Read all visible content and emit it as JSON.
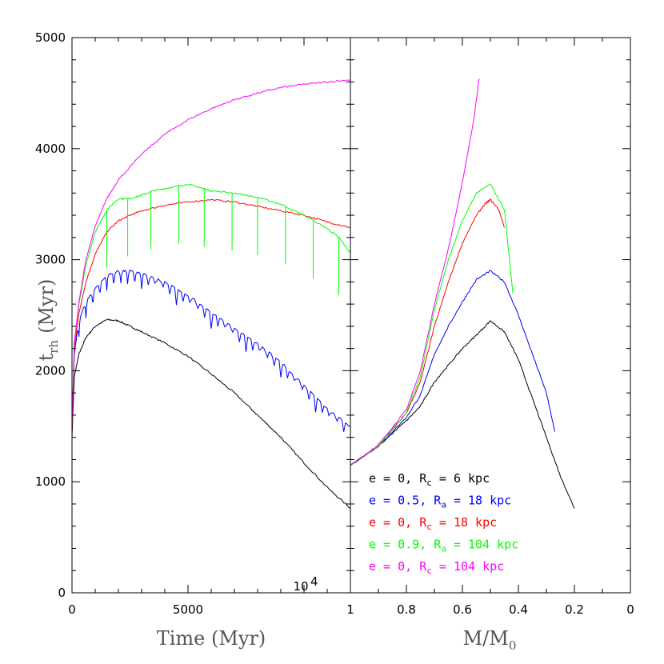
{
  "chart_data": [
    {
      "panel": "left",
      "type": "line",
      "xlabel": "Time (Myr)",
      "ylabel_main": "t",
      "ylabel_sub": "rh",
      "ylabel_unit": "(Myr)",
      "xlim": [
        0,
        12000
      ],
      "ylim": [
        0,
        5000
      ],
      "xticks": [
        {
          "value": 0,
          "label": "0"
        },
        {
          "value": 5000,
          "label": "5000"
        },
        {
          "value": 10000,
          "label": "10",
          "exp": "4"
        }
      ],
      "yticks": [
        {
          "value": 0,
          "label": "0"
        },
        {
          "value": 1000,
          "label": "1000"
        },
        {
          "value": 2000,
          "label": "2000"
        },
        {
          "value": 3000,
          "label": "3000"
        },
        {
          "value": 4000,
          "label": "4000"
        },
        {
          "value": 5000,
          "label": "5000"
        }
      ],
      "series": [
        {
          "name": "e = 0, Rc = 6 kpc",
          "color": "#000000",
          "x": [
            0,
            100,
            300,
            600,
            1000,
            1500,
            2000,
            2500,
            3000,
            4000,
            5000,
            6000,
            7000,
            8000,
            9000,
            10000,
            11000,
            12000
          ],
          "y": [
            1400,
            1950,
            2150,
            2300,
            2400,
            2460,
            2450,
            2400,
            2350,
            2250,
            2130,
            1970,
            1800,
            1600,
            1400,
            1170,
            950,
            760
          ],
          "osc": 0
        },
        {
          "name": "e = 0.5, Ra = 18 kpc",
          "color": "#0000ff",
          "x": [
            0,
            100,
            300,
            600,
            1000,
            1500,
            2000,
            2500,
            3000,
            4000,
            5000,
            6000,
            7000,
            8000,
            9000,
            10000,
            11000,
            12000
          ],
          "y": [
            1450,
            2150,
            2450,
            2620,
            2740,
            2860,
            2900,
            2900,
            2880,
            2800,
            2680,
            2530,
            2380,
            2250,
            2080,
            1870,
            1660,
            1500
          ],
          "osc": 120
        },
        {
          "name": "e = 0, Rc = 18 kpc",
          "color": "#ff0000",
          "x": [
            0,
            100,
            300,
            600,
            1000,
            1500,
            2000,
            2500,
            3000,
            4000,
            5000,
            6000,
            7000,
            8000,
            9000,
            10000,
            11000,
            12000
          ],
          "y": [
            1450,
            2200,
            2520,
            2800,
            3050,
            3250,
            3350,
            3400,
            3440,
            3490,
            3520,
            3540,
            3520,
            3480,
            3440,
            3400,
            3340,
            3290
          ],
          "osc": 0
        },
        {
          "name": "e = 0.9, Ra = 104 kpc",
          "color": "#00ff00",
          "x": [
            0,
            100,
            300,
            600,
            1000,
            1500,
            2000,
            2500,
            3000,
            3500,
            4000,
            4500,
            5000,
            5500,
            6000,
            7000,
            8000,
            9000,
            10000,
            11000,
            11500,
            12000
          ],
          "y": [
            1500,
            2250,
            2600,
            2950,
            3250,
            3450,
            3550,
            3550,
            3580,
            3620,
            3640,
            3660,
            3680,
            3650,
            3620,
            3600,
            3560,
            3500,
            3400,
            3280,
            3200,
            3060
          ],
          "osc": 0
        },
        {
          "name": "e = 0, Rc = 104 kpc",
          "color": "#ff00ff",
          "x": [
            0,
            100,
            300,
            600,
            1000,
            1500,
            2000,
            3000,
            4000,
            5000,
            6000,
            7000,
            8000,
            9000,
            10000,
            11000,
            12000
          ],
          "y": [
            1500,
            2250,
            2620,
            3000,
            3300,
            3550,
            3720,
            3950,
            4130,
            4260,
            4360,
            4440,
            4500,
            4550,
            4580,
            4600,
            4620
          ],
          "osc": 0
        }
      ]
    },
    {
      "panel": "right",
      "type": "line",
      "xlabel": "M/M",
      "xlabel_sub": "0",
      "xlim": [
        1,
        0
      ],
      "ylim": [
        0,
        5000
      ],
      "xticks": [
        {
          "value": 1,
          "label": "1"
        },
        {
          "value": 0.8,
          "label": "0.8"
        },
        {
          "value": 0.6,
          "label": "0.6"
        },
        {
          "value": 0.4,
          "label": "0.4"
        },
        {
          "value": 0.2,
          "label": "0.2"
        },
        {
          "value": 0,
          "label": "0"
        }
      ],
      "series": [
        {
          "name": "e = 0, Rc = 6 kpc",
          "color": "#000000",
          "x": [
            1,
            0.9,
            0.8,
            0.75,
            0.7,
            0.65,
            0.6,
            0.55,
            0.5,
            0.45,
            0.4,
            0.35,
            0.3,
            0.25,
            0.2
          ],
          "y": [
            1150,
            1320,
            1550,
            1680,
            1900,
            2050,
            2200,
            2320,
            2450,
            2350,
            2100,
            1750,
            1400,
            1050,
            760
          ]
        },
        {
          "name": "e = 0.5, Ra = 18 kpc",
          "color": "#0000ff",
          "x": [
            1,
            0.9,
            0.8,
            0.75,
            0.7,
            0.65,
            0.6,
            0.55,
            0.5,
            0.45,
            0.4,
            0.35,
            0.3,
            0.27
          ],
          "y": [
            1150,
            1320,
            1580,
            1780,
            2150,
            2400,
            2620,
            2820,
            2900,
            2800,
            2500,
            2150,
            1800,
            1450
          ]
        },
        {
          "name": "e = 0, Rc = 18 kpc",
          "color": "#ff0000",
          "x": [
            1,
            0.9,
            0.8,
            0.75,
            0.7,
            0.65,
            0.6,
            0.55,
            0.52,
            0.5,
            0.47,
            0.45
          ],
          "y": [
            1150,
            1320,
            1620,
            1900,
            2400,
            2800,
            3150,
            3400,
            3500,
            3540,
            3450,
            3290
          ]
        },
        {
          "name": "e = 0.9, Ra = 104 kpc",
          "color": "#00ff00",
          "x": [
            1,
            0.9,
            0.8,
            0.75,
            0.7,
            0.65,
            0.6,
            0.55,
            0.5,
            0.45,
            0.42
          ],
          "y": [
            1150,
            1320,
            1620,
            1950,
            2550,
            3000,
            3350,
            3600,
            3680,
            3450,
            2700
          ]
        },
        {
          "name": "e = 0, Rc = 104 kpc",
          "color": "#ff00ff",
          "x": [
            1,
            0.9,
            0.8,
            0.75,
            0.7,
            0.65,
            0.6,
            0.56,
            0.54
          ],
          "y": [
            1150,
            1330,
            1650,
            2000,
            2600,
            3100,
            3700,
            4250,
            4630
          ]
        }
      ]
    }
  ],
  "legend": {
    "placement": "lower-right of right panel",
    "entries": [
      {
        "color": "#000000",
        "pre": "e = 0, R",
        "sub": "c",
        "post": " = 6 kpc"
      },
      {
        "color": "#0000ff",
        "pre": "e = 0.5, R",
        "sub": "a",
        "post": " = 18 kpc"
      },
      {
        "color": "#ff0000",
        "pre": "e = 0, R",
        "sub": "c",
        "post": " = 18 kpc"
      },
      {
        "color": "#00ff00",
        "pre": "e = 0.9, R",
        "sub": "a",
        "post": " = 104 kpc"
      },
      {
        "color": "#ff00ff",
        "pre": "e = 0, R",
        "sub": "c",
        "post": " = 104 kpc"
      }
    ]
  }
}
